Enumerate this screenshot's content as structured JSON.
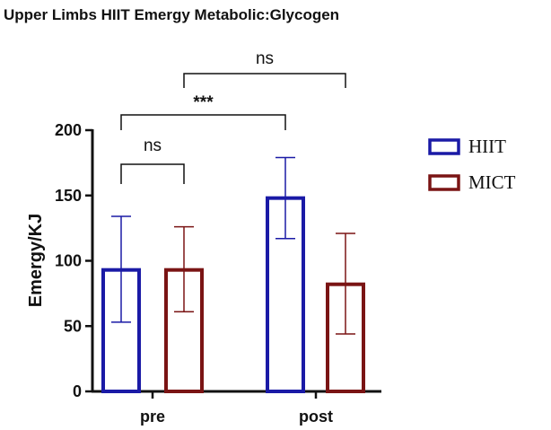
{
  "chart_data": {
    "type": "bar",
    "title": "Upper Limbs HIIT Emergy Metabolic:Glycogen",
    "xlabel": "",
    "ylabel": "Emergy/KJ",
    "ylim": [
      0,
      200
    ],
    "yticks": [
      0,
      50,
      100,
      150,
      200
    ],
    "categories": [
      "pre",
      "post"
    ],
    "series": [
      {
        "name": "HIIT",
        "color": "#1a1aa6",
        "values": [
          93,
          148
        ],
        "error_low": [
          53,
          117
        ],
        "error_high": [
          134,
          179
        ]
      },
      {
        "name": "MICT",
        "color": "#7a1414",
        "values": [
          93,
          82
        ],
        "error_low": [
          61,
          44
        ],
        "error_high": [
          126,
          121
        ]
      }
    ],
    "legend_position": "right",
    "annotations": [
      {
        "label": "ns",
        "from": "pre-HIIT",
        "to": "pre-MICT"
      },
      {
        "label": "***",
        "from": "pre-HIIT",
        "to": "post-HIIT"
      },
      {
        "label": "ns",
        "from": "pre-MICT",
        "to": "post-MICT"
      }
    ]
  }
}
